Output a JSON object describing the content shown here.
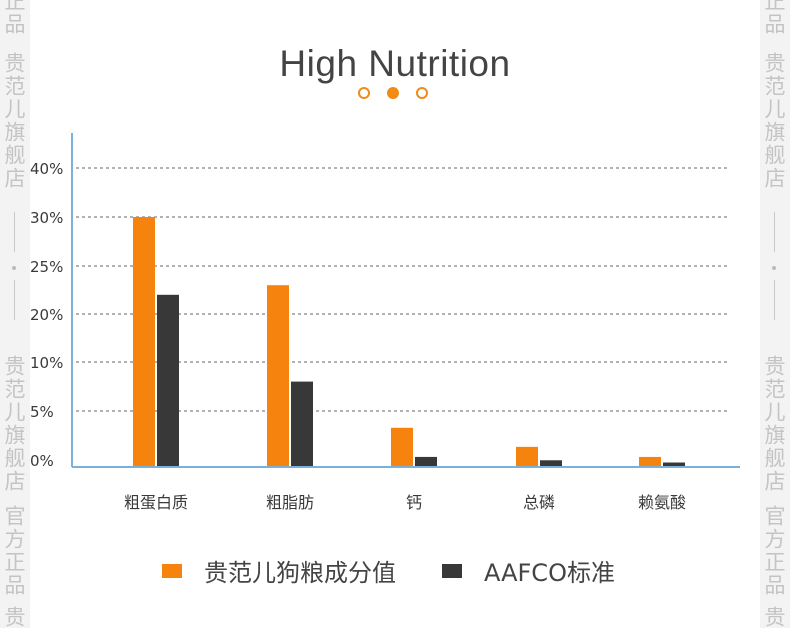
{
  "watermark": {
    "side_text": "贵范儿旗舰店",
    "official_text": "官方正品",
    "top_fragment": "正品",
    "bottom_fragment": "贵"
  },
  "header": {
    "title": "High Nutrition"
  },
  "pager": {
    "count": 3,
    "active_index": 1
  },
  "colors": {
    "product": "#f6830e",
    "aafco": "#383838",
    "axis": "#7ab1dc",
    "grid": "#666666",
    "accent": "#f28a16"
  },
  "chart_data": {
    "type": "bar",
    "title": "",
    "xlabel": "",
    "ylabel": "",
    "categories": [
      "粗蛋白质",
      "粗脂肪",
      "钙",
      "总磷",
      "赖氨酸"
    ],
    "y_tick_labels": [
      "0%",
      "5%",
      "10%",
      "20%",
      "25%",
      "30%",
      "40%"
    ],
    "grid": true,
    "legend_position": "bottom",
    "series": [
      {
        "name": "贵范儿狗粮成分值",
        "values": [
          30,
          23,
          3.5,
          1.8,
          0.9
        ]
      },
      {
        "name": "AAFCO标准",
        "values": [
          22,
          8,
          0.9,
          0.6,
          0.4
        ]
      }
    ]
  }
}
